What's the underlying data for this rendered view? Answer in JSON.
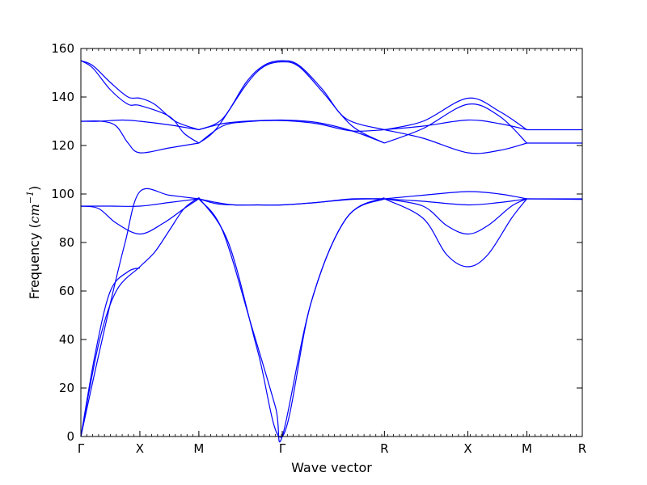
{
  "chart_data": {
    "type": "line",
    "xlabel": "Wave vector",
    "ylabel": {
      "prefix": "Frequency (",
      "unit": "cm",
      "exponent": "−1",
      "suffix": ")"
    },
    "ylim": [
      0,
      160
    ],
    "yticks": [
      "0",
      "20",
      "40",
      "60",
      "80",
      "100",
      "120",
      "140",
      "160"
    ],
    "xlim": [
      0,
      8.5
    ],
    "xticks": [
      {
        "label": "Γ",
        "x": 0
      },
      {
        "label": "X",
        "x": 1
      },
      {
        "label": "M",
        "x": 2
      },
      {
        "label": "Γ",
        "x": 3.414
      },
      {
        "label": "R",
        "x": 5.146
      },
      {
        "label": "X",
        "x": 6.56
      },
      {
        "label": "M",
        "x": 7.56
      },
      {
        "label": "R",
        "x": 8.5
      }
    ],
    "grid": false,
    "line_color": "#0000ff",
    "series": [
      {
        "points": [
          [
            0,
            0
          ],
          [
            0.3,
            38
          ],
          [
            0.6,
            60
          ],
          [
            1,
            70
          ],
          [
            1.25,
            76
          ],
          [
            1.5,
            85
          ],
          [
            1.75,
            94
          ],
          [
            2,
            98.5
          ]
        ]
      },
      {
        "points": [
          [
            0,
            0
          ],
          [
            0.25,
            35
          ],
          [
            0.5,
            60
          ],
          [
            0.8,
            68
          ],
          [
            1,
            69.5
          ]
        ]
      },
      {
        "points": [
          [
            0,
            0
          ],
          [
            0.25,
            28
          ],
          [
            0.5,
            55
          ],
          [
            0.75,
            80
          ],
          [
            1,
            101
          ],
          [
            1.5,
            99.5
          ],
          [
            2,
            98
          ]
        ]
      },
      {
        "points": [
          [
            0,
            95
          ],
          [
            0.3,
            94
          ],
          [
            0.6,
            88
          ],
          [
            1,
            83.5
          ],
          [
            1.4,
            88
          ],
          [
            1.75,
            94
          ],
          [
            2,
            98
          ]
        ]
      },
      {
        "points": [
          [
            0,
            95
          ],
          [
            0.5,
            95
          ],
          [
            1,
            95
          ],
          [
            1.5,
            96.5
          ],
          [
            2,
            98
          ]
        ]
      },
      {
        "points": [
          [
            2,
            98.5
          ],
          [
            2.5,
            80
          ],
          [
            3,
            35
          ],
          [
            3.414,
            0
          ],
          [
            3.9,
            55
          ],
          [
            4.5,
            90
          ],
          [
            5.146,
            98.5
          ]
        ]
      },
      {
        "points": [
          [
            2,
            98
          ],
          [
            2.4,
            85
          ],
          [
            2.9,
            45
          ],
          [
            3.3,
            12
          ],
          [
            3.414,
            0
          ],
          [
            3.9,
            55
          ],
          [
            4.5,
            90
          ],
          [
            5.146,
            98
          ]
        ]
      },
      {
        "points": [
          [
            2,
            98
          ],
          [
            2.3,
            96
          ],
          [
            2.6,
            95.5
          ],
          [
            3,
            95.5
          ],
          [
            3.414,
            95.5
          ],
          [
            4,
            96.5
          ],
          [
            4.6,
            98
          ],
          [
            5.146,
            98
          ]
        ]
      },
      {
        "points": [
          [
            2,
            98
          ],
          [
            2.3,
            96.5
          ],
          [
            2.6,
            95.5
          ],
          [
            3,
            95.5
          ],
          [
            3.414,
            95.5
          ],
          [
            4,
            96.5
          ],
          [
            4.6,
            97.8
          ],
          [
            5.146,
            98
          ]
        ]
      },
      {
        "points": [
          [
            5.146,
            98
          ],
          [
            5.8,
            99.5
          ],
          [
            6.56,
            101
          ],
          [
            7.1,
            100
          ],
          [
            7.56,
            98
          ]
        ]
      },
      {
        "points": [
          [
            5.146,
            98
          ],
          [
            5.8,
            97
          ],
          [
            6.56,
            95.5
          ],
          [
            7.1,
            96.5
          ],
          [
            7.56,
            98
          ]
        ]
      },
      {
        "points": [
          [
            5.146,
            98
          ],
          [
            5.8,
            95
          ],
          [
            6.2,
            87
          ],
          [
            6.56,
            83.5
          ],
          [
            6.9,
            87
          ],
          [
            7.3,
            95
          ],
          [
            7.56,
            98
          ]
        ]
      },
      {
        "points": [
          [
            5.146,
            98
          ],
          [
            5.8,
            90
          ],
          [
            6.2,
            75
          ],
          [
            6.56,
            70
          ],
          [
            6.9,
            75
          ],
          [
            7.3,
            90
          ],
          [
            7.56,
            98
          ]
        ]
      },
      {
        "points": [
          [
            7.56,
            98
          ],
          [
            8.5,
            98
          ]
        ]
      },
      {
        "points": [
          [
            7.56,
            98
          ],
          [
            8.5,
            97.8
          ]
        ]
      },
      {
        "points": [
          [
            0,
            155
          ],
          [
            0.2,
            153
          ],
          [
            0.5,
            146
          ],
          [
            0.8,
            140
          ],
          [
            1,
            139.5
          ],
          [
            1.25,
            137
          ],
          [
            1.6,
            130
          ],
          [
            2,
            126.5
          ]
        ]
      },
      {
        "points": [
          [
            0,
            155
          ],
          [
            0.2,
            152
          ],
          [
            0.5,
            143
          ],
          [
            0.8,
            137
          ],
          [
            1,
            136.5
          ],
          [
            1.5,
            132
          ],
          [
            1.75,
            125
          ],
          [
            2,
            121
          ]
        ]
      },
      {
        "points": [
          [
            0,
            130
          ],
          [
            0.3,
            130
          ],
          [
            0.7,
            130.5
          ],
          [
            1,
            130
          ],
          [
            1.5,
            128.5
          ],
          [
            2,
            126.5
          ]
        ]
      },
      {
        "points": [
          [
            0,
            130
          ],
          [
            0.35,
            130
          ],
          [
            0.6,
            128
          ],
          [
            0.8,
            121
          ],
          [
            1,
            117
          ],
          [
            1.5,
            119
          ],
          [
            2,
            121
          ]
        ]
      },
      {
        "points": [
          [
            2,
            126.5
          ],
          [
            2.4,
            131
          ],
          [
            2.8,
            146
          ],
          [
            3.1,
            153
          ],
          [
            3.414,
            155
          ],
          [
            3.7,
            153
          ],
          [
            4.1,
            143
          ],
          [
            4.5,
            131
          ],
          [
            5.146,
            126.5
          ]
        ]
      },
      {
        "points": [
          [
            2,
            121
          ],
          [
            2.3,
            127
          ],
          [
            2.8,
            145
          ],
          [
            3.1,
            152.5
          ],
          [
            3.414,
            154.5
          ],
          [
            3.7,
            152.5
          ],
          [
            4.1,
            142
          ],
          [
            4.6,
            128
          ],
          [
            5.146,
            121
          ]
        ]
      },
      {
        "points": [
          [
            2,
            126.5
          ],
          [
            2.4,
            129
          ],
          [
            2.8,
            130
          ],
          [
            3.414,
            130.5
          ],
          [
            4,
            129.5
          ],
          [
            4.6,
            126
          ],
          [
            5.146,
            121
          ]
        ]
      },
      {
        "points": [
          [
            2,
            121
          ],
          [
            2.4,
            128
          ],
          [
            2.8,
            129.8
          ],
          [
            3.414,
            130.3
          ],
          [
            4,
            129
          ],
          [
            4.6,
            126
          ],
          [
            5.146,
            126.5
          ]
        ]
      },
      {
        "points": [
          [
            5.146,
            126.5
          ],
          [
            5.8,
            128
          ],
          [
            6.56,
            130.5
          ],
          [
            7.1,
            129
          ],
          [
            7.56,
            126.5
          ]
        ]
      },
      {
        "points": [
          [
            5.146,
            126.5
          ],
          [
            5.8,
            130
          ],
          [
            6.56,
            139.5
          ],
          [
            7.1,
            134
          ],
          [
            7.56,
            126.5
          ]
        ]
      },
      {
        "points": [
          [
            5.146,
            121
          ],
          [
            5.8,
            127
          ],
          [
            6.56,
            137
          ],
          [
            7.1,
            132
          ],
          [
            7.56,
            121
          ]
        ]
      },
      {
        "points": [
          [
            5.146,
            126.5
          ],
          [
            5.8,
            123
          ],
          [
            6.56,
            117
          ],
          [
            7.1,
            118
          ],
          [
            7.56,
            121
          ]
        ]
      },
      {
        "points": [
          [
            7.56,
            126.5
          ],
          [
            8.5,
            126.5
          ]
        ]
      },
      {
        "points": [
          [
            7.56,
            121
          ],
          [
            8.5,
            121
          ]
        ]
      }
    ]
  }
}
